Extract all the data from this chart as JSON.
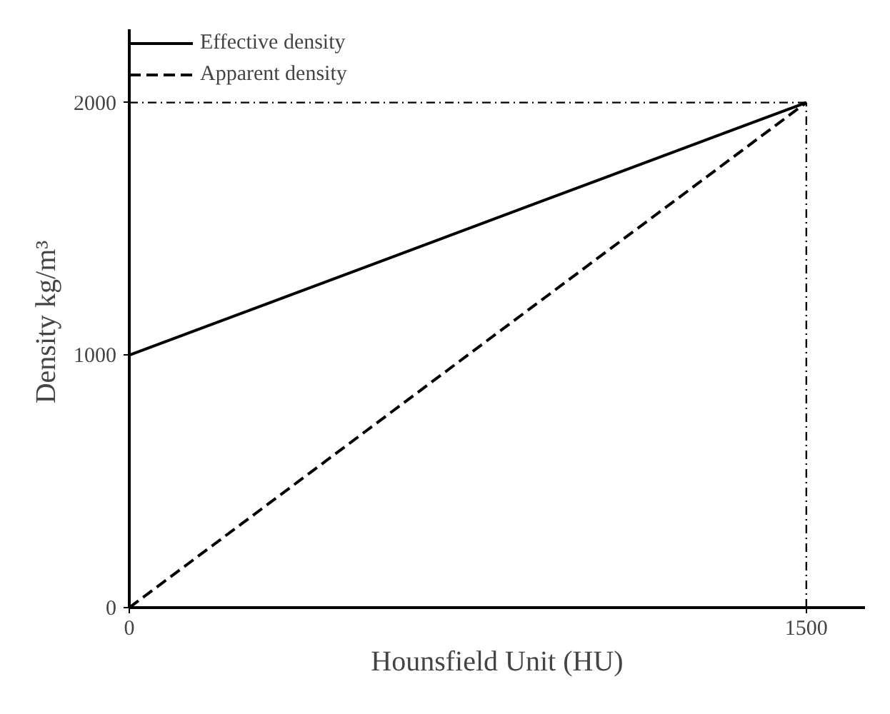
{
  "chart_data": {
    "type": "line",
    "xlabel": "Hounsfield Unit (HU)",
    "ylabel": "Density  kg/m³",
    "xlim": [
      0,
      1630
    ],
    "ylim": [
      0,
      2290
    ],
    "xticks": [
      0,
      1500
    ],
    "yticks": [
      0,
      1000,
      2000
    ],
    "grid": false,
    "legend": "top left",
    "marker": "none",
    "x": [
      0,
      1500
    ],
    "series": [
      {
        "name": "Effective density",
        "color": "#000000",
        "values": [
          1000,
          2000
        ],
        "line_style": "solid"
      },
      {
        "name": "Apparent density",
        "color": "#000000",
        "values": [
          0,
          2000
        ],
        "line_style": "dashed"
      }
    ],
    "ref_lines": [
      {
        "axis": "y",
        "value": 2000,
        "color": "#000000",
        "line_style": "dashdot"
      },
      {
        "axis": "x",
        "value": 1500,
        "color": "#000000",
        "line_style": "dashdot"
      }
    ]
  }
}
